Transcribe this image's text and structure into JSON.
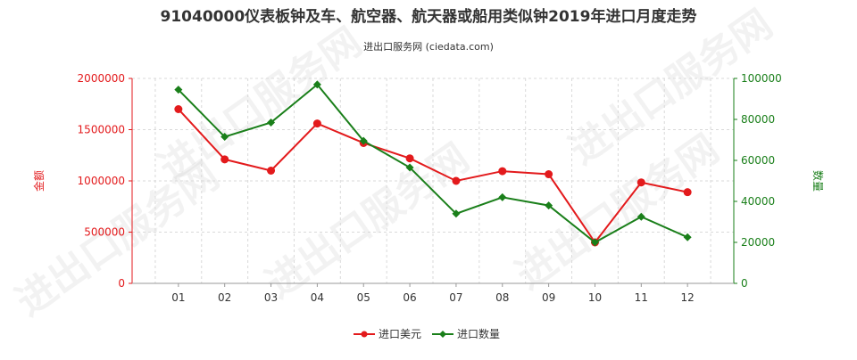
{
  "chart_data": {
    "type": "line",
    "title": "91040000仪表板钟及车、航空器、航天器或船用类似钟2019年进口月度走势",
    "subtitle": "进出口服务网 (ciedata.com)",
    "watermark": "进出口服务网",
    "categories": [
      "01",
      "02",
      "03",
      "04",
      "05",
      "06",
      "07",
      "08",
      "09",
      "10",
      "11",
      "12"
    ],
    "y_left": {
      "label": "金额",
      "ylim": [
        0,
        2000000
      ],
      "ticks": [
        0,
        500000,
        1000000,
        1500000,
        2000000
      ],
      "color": "#e31a1c"
    },
    "y_right": {
      "label": "数量",
      "ylim": [
        0,
        100000
      ],
      "ticks": [
        0,
        20000,
        40000,
        60000,
        80000,
        100000
      ],
      "color": "#1a7f1a"
    },
    "series": [
      {
        "name": "进口美元",
        "axis": "left",
        "color": "#e31a1c",
        "marker": "circle",
        "values": [
          1700000,
          1210000,
          1100000,
          1560000,
          1370000,
          1220000,
          1000000,
          1095000,
          1065000,
          400000,
          985000,
          890000
        ]
      },
      {
        "name": "进口数量",
        "axis": "right",
        "color": "#1a7f1a",
        "marker": "diamond",
        "values": [
          94500,
          71500,
          78500,
          97000,
          69500,
          56500,
          34000,
          42000,
          38000,
          20000,
          32500,
          22500
        ]
      }
    ],
    "grid": true,
    "legend_position": "bottom-center"
  }
}
